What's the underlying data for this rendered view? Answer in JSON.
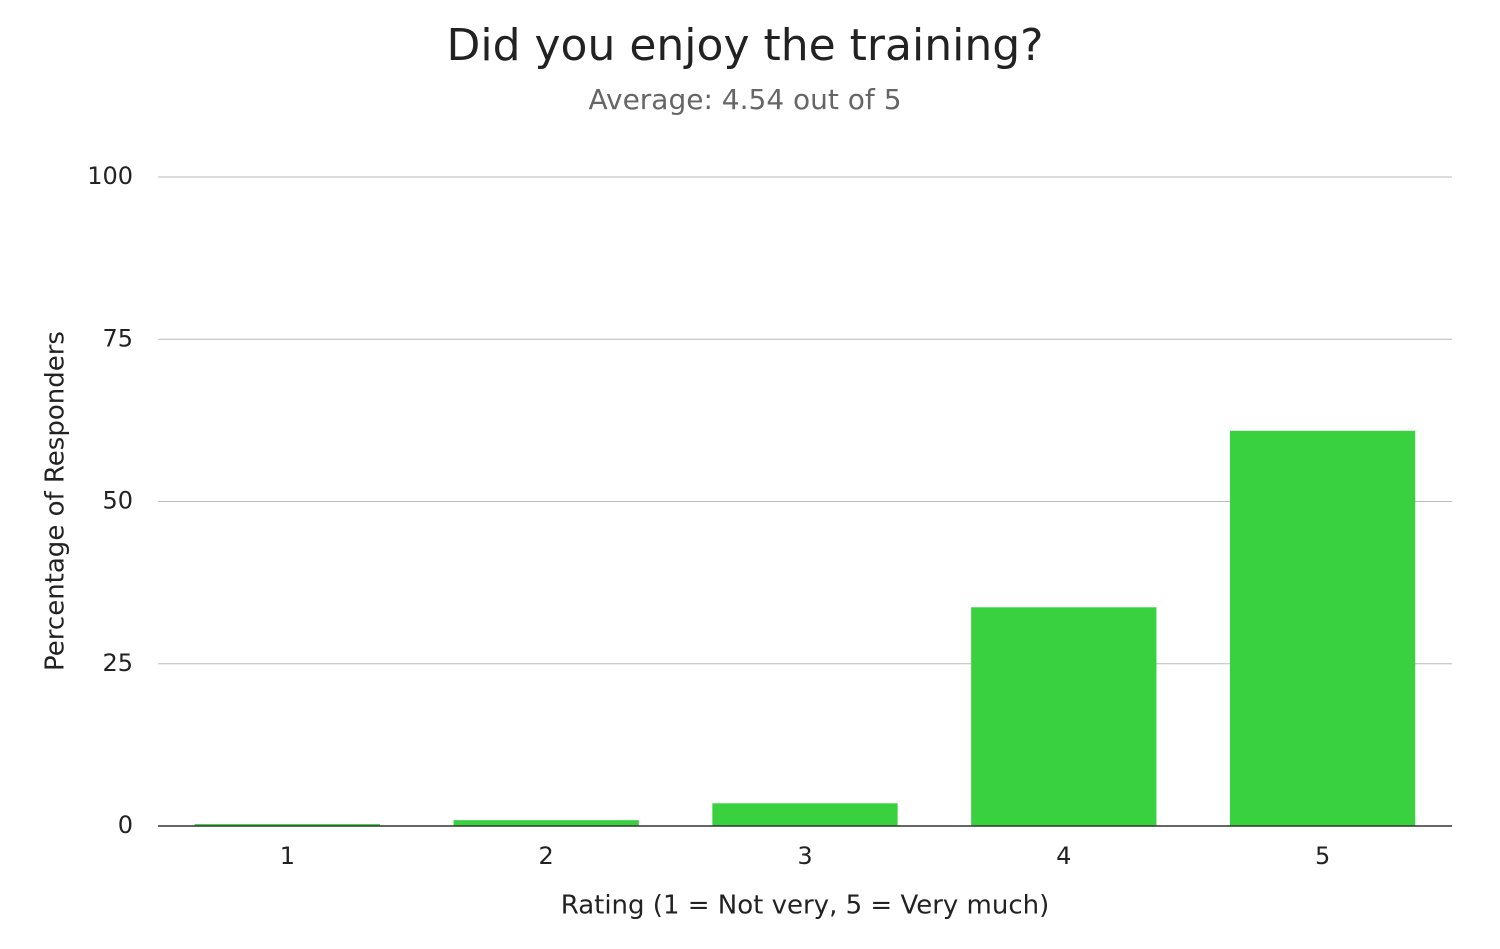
{
  "chart_data": {
    "type": "bar",
    "title": "Did you enjoy the training?",
    "subtitle": "Average: 4.54 out of 5",
    "x_label": "Rating (1 = Not very, 5 = Very much)",
    "y_label": "Percentage of Responders",
    "categories": [
      "1",
      "2",
      "3",
      "4",
      "5"
    ],
    "values": [
      0.3,
      0.9,
      3.5,
      33.7,
      60.9
    ],
    "color": "#3ad141",
    "ylim": [
      0,
      100
    ],
    "yticks": [
      0,
      25,
      50,
      75,
      100
    ],
    "grid": true
  }
}
